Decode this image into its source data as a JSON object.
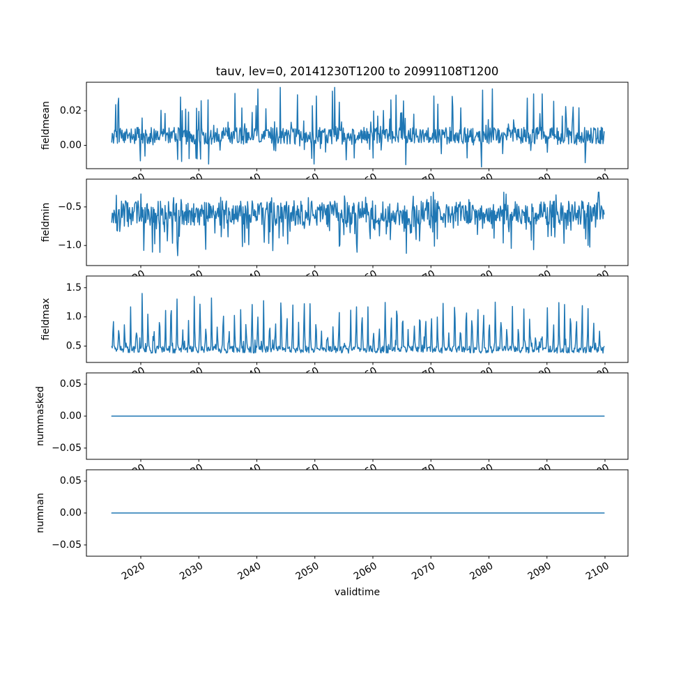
{
  "chart_data": {
    "type": "line",
    "title": "tauv, lev=0, 20141230T1200 to 20991108T1200",
    "xlabel": "validtime",
    "line_color": "#1f77b4",
    "background_color": "#ffffff",
    "grid": false,
    "legend": "none",
    "x_axis": {
      "label": "validtime",
      "xlim_years": [
        2010.6,
        2104.1
      ],
      "data_span": [
        "20141230T1200",
        "20991108T1200"
      ],
      "data_span_years": [
        2014.99,
        2099.85
      ],
      "tick_rotation_deg": 30,
      "ticks": [
        {
          "year": 2020,
          "label": "2020"
        },
        {
          "year": 2030,
          "label": "2030"
        },
        {
          "year": 2040,
          "label": "2040"
        },
        {
          "year": 2050,
          "label": "2050"
        },
        {
          "year": 2060,
          "label": "2060"
        },
        {
          "year": 2070,
          "label": "2070"
        },
        {
          "year": 2080,
          "label": "2080"
        },
        {
          "year": 2090,
          "label": "2090"
        },
        {
          "year": 2100,
          "label": "2100"
        }
      ]
    },
    "subplots": [
      {
        "ylabel": "fieldmean",
        "ylim": [
          -0.0135,
          0.0365
        ],
        "yticks": [
          {
            "value": 0.02,
            "label": "0.02"
          },
          {
            "value": 0.0,
            "label": "0.00"
          }
        ],
        "series": {
          "name": "fieldmean",
          "approx_mean": 0.006,
          "approx_min": -0.012,
          "approx_max": 0.033,
          "synthesis": {
            "kind": "noise",
            "seed": 101,
            "n": 860,
            "base": 0.0055,
            "noise": 0.005,
            "spike_up": {
              "p": 0.1,
              "min": 0.003,
              "max": 0.026
            },
            "spike_down": {
              "p": 0.05,
              "min": 0.003,
              "max": 0.016
            },
            "clip": [
              -0.0125,
              0.0335
            ]
          }
        }
      },
      {
        "ylabel": "fieldmin",
        "ylim": [
          -1.26,
          -0.14
        ],
        "yticks": [
          {
            "value": -0.5,
            "label": "−0.5"
          },
          {
            "value": -1.0,
            "label": "−1.0"
          }
        ],
        "series": {
          "name": "fieldmin",
          "approx_mean": -0.62,
          "approx_min": -1.22,
          "approx_max": -0.31,
          "synthesis": {
            "kind": "noise",
            "seed": 202,
            "n": 860,
            "base": -0.58,
            "noise": 0.16,
            "spike_down": {
              "p": 0.16,
              "min": 0.04,
              "max": 0.45
            },
            "spike_up": {
              "p": 0.1,
              "min": 0.02,
              "max": 0.18
            },
            "clip": [
              -1.23,
              -0.31
            ]
          }
        }
      },
      {
        "ylabel": "fieldmax",
        "ylim": [
          0.22,
          1.7
        ],
        "yticks": [
          {
            "value": 1.5,
            "label": "1.5"
          },
          {
            "value": 1.0,
            "label": "1.0"
          },
          {
            "value": 0.5,
            "label": "0.5"
          }
        ],
        "series": {
          "name": "fieldmax",
          "approx_base": 0.45,
          "approx_min": 0.31,
          "approx_max": 1.57,
          "pattern": "quasi-annual narrow upward spikes",
          "synthesis": {
            "kind": "periodic",
            "seed": 303,
            "n": 860,
            "base": 0.44,
            "noise": 0.06,
            "period": 10.1,
            "sharp": 5,
            "amp_min": 0.12,
            "amp_max": 0.95,
            "spike_up": {
              "p": 0.03,
              "min": 0.05,
              "max": 0.18
            },
            "clip": [
              0.31,
              1.57
            ]
          }
        }
      },
      {
        "ylabel": "nummasked",
        "ylim": [
          -0.0676,
          0.0676
        ],
        "yticks": [
          {
            "value": 0.05,
            "label": "0.05"
          },
          {
            "value": 0.0,
            "label": "0.00"
          },
          {
            "value": -0.05,
            "label": "−0.05"
          }
        ],
        "series": {
          "name": "nummasked",
          "constant_value": 0.0,
          "synthesis": {
            "kind": "constant",
            "n": 860,
            "value": 0.0
          }
        }
      },
      {
        "ylabel": "numnan",
        "ylim": [
          -0.0676,
          0.0676
        ],
        "yticks": [
          {
            "value": 0.05,
            "label": "0.05"
          },
          {
            "value": 0.0,
            "label": "0.00"
          },
          {
            "value": -0.05,
            "label": "−0.05"
          }
        ],
        "series": {
          "name": "numnan",
          "constant_value": 0.0,
          "synthesis": {
            "kind": "constant",
            "n": 860,
            "value": 0.0
          }
        }
      }
    ]
  }
}
